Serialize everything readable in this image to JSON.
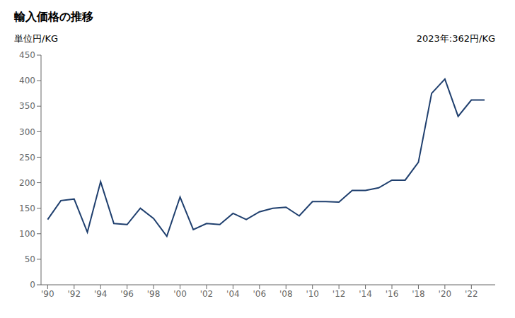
{
  "chart_data": {
    "type": "line",
    "title": "輸入価格の推移",
    "ylabel": "単位円/KG",
    "annotation": "2023年:362円/KG",
    "x": [
      1990,
      1991,
      1992,
      1993,
      1994,
      1995,
      1996,
      1997,
      1998,
      1999,
      2000,
      2001,
      2002,
      2003,
      2004,
      2005,
      2006,
      2007,
      2008,
      2009,
      2010,
      2011,
      2012,
      2013,
      2014,
      2015,
      2016,
      2017,
      2018,
      2019,
      2020,
      2021,
      2022,
      2023
    ],
    "values": [
      128,
      165,
      168,
      103,
      202,
      120,
      118,
      150,
      130,
      95,
      172,
      108,
      120,
      118,
      140,
      128,
      143,
      150,
      152,
      135,
      163,
      163,
      162,
      185,
      185,
      190,
      205,
      205,
      240,
      375,
      403,
      330,
      362,
      362
    ],
    "color": "#1f3f6e",
    "xlim": [
      1989.5,
      2023.8
    ],
    "xticks": [
      {
        "value": 1990,
        "label": "'90"
      },
      {
        "value": 1992,
        "label": "'92"
      },
      {
        "value": 1994,
        "label": "'94"
      },
      {
        "value": 1996,
        "label": "'96"
      },
      {
        "value": 1998,
        "label": "'98"
      },
      {
        "value": 2000,
        "label": "'00"
      },
      {
        "value": 2002,
        "label": "'02"
      },
      {
        "value": 2004,
        "label": "'04"
      },
      {
        "value": 2006,
        "label": "'06"
      },
      {
        "value": 2008,
        "label": "'08"
      },
      {
        "value": 2010,
        "label": "'10"
      },
      {
        "value": 2012,
        "label": "'12"
      },
      {
        "value": 2014,
        "label": "'14"
      },
      {
        "value": 2016,
        "label": "'16"
      },
      {
        "value": 2018,
        "label": "'18"
      },
      {
        "value": 2020,
        "label": "'20"
      },
      {
        "value": 2022,
        "label": "'22"
      }
    ],
    "ylim": [
      0,
      450
    ],
    "yticks": [
      0,
      50,
      100,
      150,
      200,
      250,
      300,
      350,
      400,
      450
    ],
    "grid": false
  }
}
